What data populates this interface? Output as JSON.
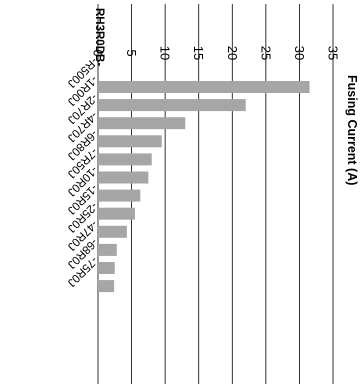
{
  "chart_data": {
    "type": "bar",
    "orientation": "horizontal",
    "title": "",
    "xlabel": "",
    "ylabel": "Fusing Current (A)",
    "series_prefix_label": "RH3R0DB-",
    "categories": [
      "-R500J",
      "-1R00J",
      "-2R70J",
      "-4R70J",
      "-6R80J",
      "-7R50J",
      "-10R0J",
      "-15R0J",
      "-25R0J",
      "-47R0J",
      "-68R0J",
      "-75R0J"
    ],
    "values": [
      31.5,
      22,
      13,
      9.5,
      8,
      7.5,
      6.3,
      5.5,
      4.3,
      2.8,
      2.5,
      2.4
    ],
    "ylim": [
      0,
      35
    ],
    "ticks": [
      0,
      5,
      10,
      15,
      20,
      25,
      30,
      35
    ],
    "grid": true,
    "bar_color": "#a6a6a6",
    "grid_color": "#000000"
  }
}
